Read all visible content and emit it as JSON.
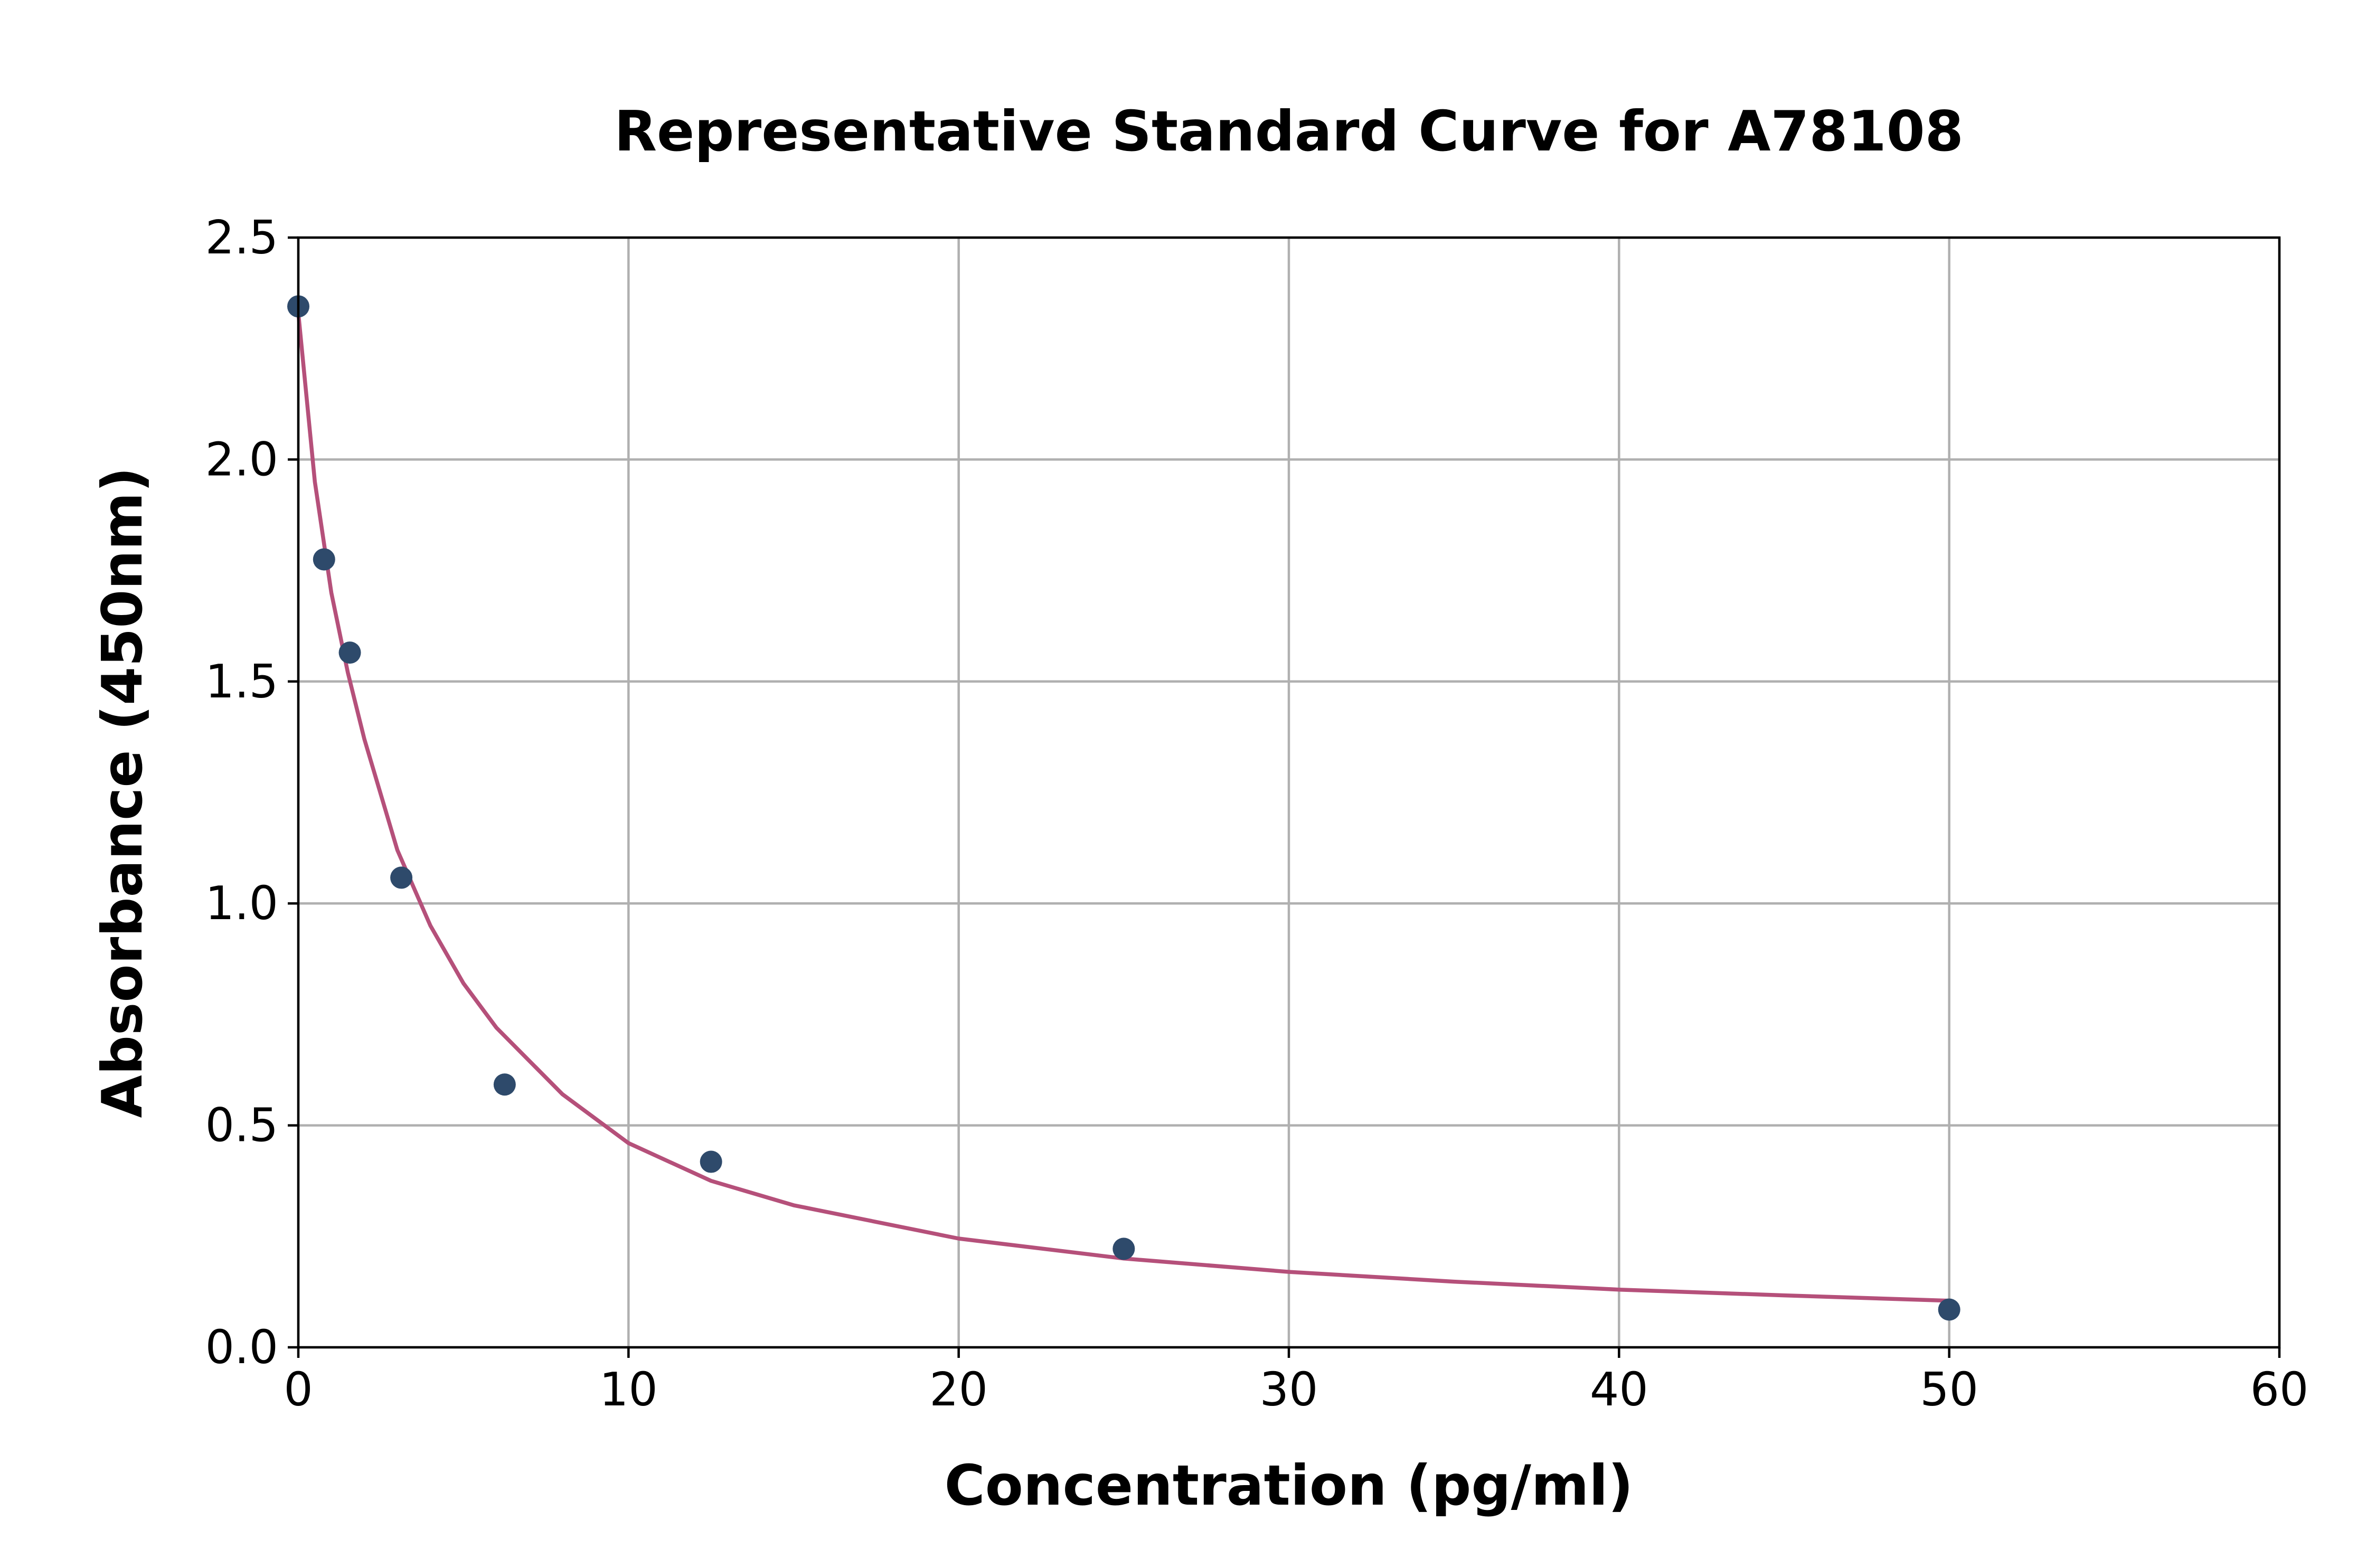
{
  "chart_data": {
    "type": "scatter",
    "title": "Representative Standard Curve for A78108",
    "xlabel": "Concentration (pg/ml)",
    "ylabel": "Absorbance (450nm)",
    "xlim": [
      0,
      60
    ],
    "ylim": [
      0,
      2.5
    ],
    "x_ticks": [
      "0",
      "10",
      "20",
      "30",
      "40",
      "50",
      "60"
    ],
    "y_ticks": [
      "0.0",
      "0.5",
      "1.0",
      "1.5",
      "2.0",
      "2.5"
    ],
    "grid": true,
    "points": {
      "color": "#2e4a6b",
      "x": [
        0,
        0.78,
        1.56,
        3.12,
        6.25,
        12.5,
        25,
        50
      ],
      "y": [
        2.345,
        1.775,
        1.565,
        1.058,
        0.592,
        0.418,
        0.222,
        0.085
      ]
    },
    "fit_curve": {
      "type": "line",
      "color": "#b5507a",
      "x": [
        0,
        0.5,
        1,
        1.5,
        2,
        3,
        4,
        5,
        6,
        8,
        10,
        12.5,
        15,
        20,
        25,
        30,
        35,
        40,
        45,
        50
      ],
      "y": [
        2.33,
        1.95,
        1.7,
        1.52,
        1.37,
        1.12,
        0.95,
        0.82,
        0.72,
        0.57,
        0.46,
        0.375,
        0.32,
        0.245,
        0.2,
        0.17,
        0.148,
        0.13,
        0.117,
        0.105
      ]
    }
  }
}
